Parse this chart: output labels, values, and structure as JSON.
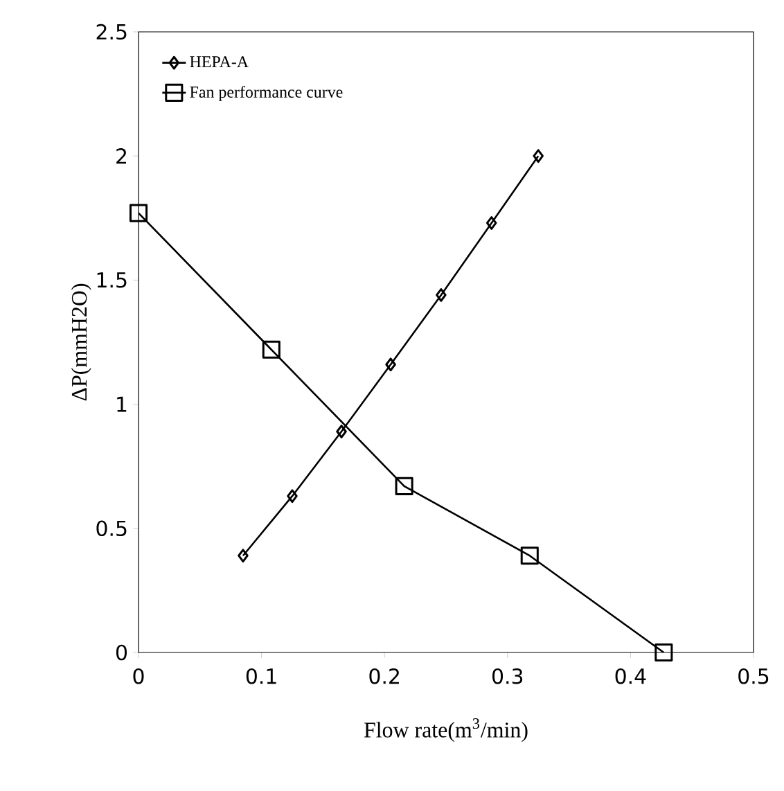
{
  "chart_data": {
    "type": "line",
    "xlabel": "Flow rate(m$^{3}$/min)",
    "ylabel": "ΔP(mmH2O)",
    "xlim": [
      0,
      0.5
    ],
    "ylim": [
      0,
      2.5
    ],
    "xticks": [
      0,
      0.1,
      0.2,
      0.3,
      0.4,
      0.5
    ],
    "yticks": [
      0,
      0.5,
      1,
      1.5,
      2,
      2.5
    ],
    "legend": "top left",
    "grid": false,
    "line_style": "solid",
    "series": [
      {
        "name": "HEPA-A",
        "color": "#000000",
        "marker": "diamond",
        "x": [
          0.085,
          0.125,
          0.165,
          0.205,
          0.246,
          0.287,
          0.325
        ],
        "values": [
          0.39,
          0.63,
          0.89,
          1.16,
          1.44,
          1.73,
          2.0
        ]
      },
      {
        "name": "Fan performance curve",
        "color": "#000000",
        "marker": "square",
        "x": [
          0,
          0.108,
          0.216,
          0.318,
          0.427
        ],
        "values": [
          1.77,
          1.22,
          0.67,
          0.39,
          0
        ]
      }
    ]
  }
}
